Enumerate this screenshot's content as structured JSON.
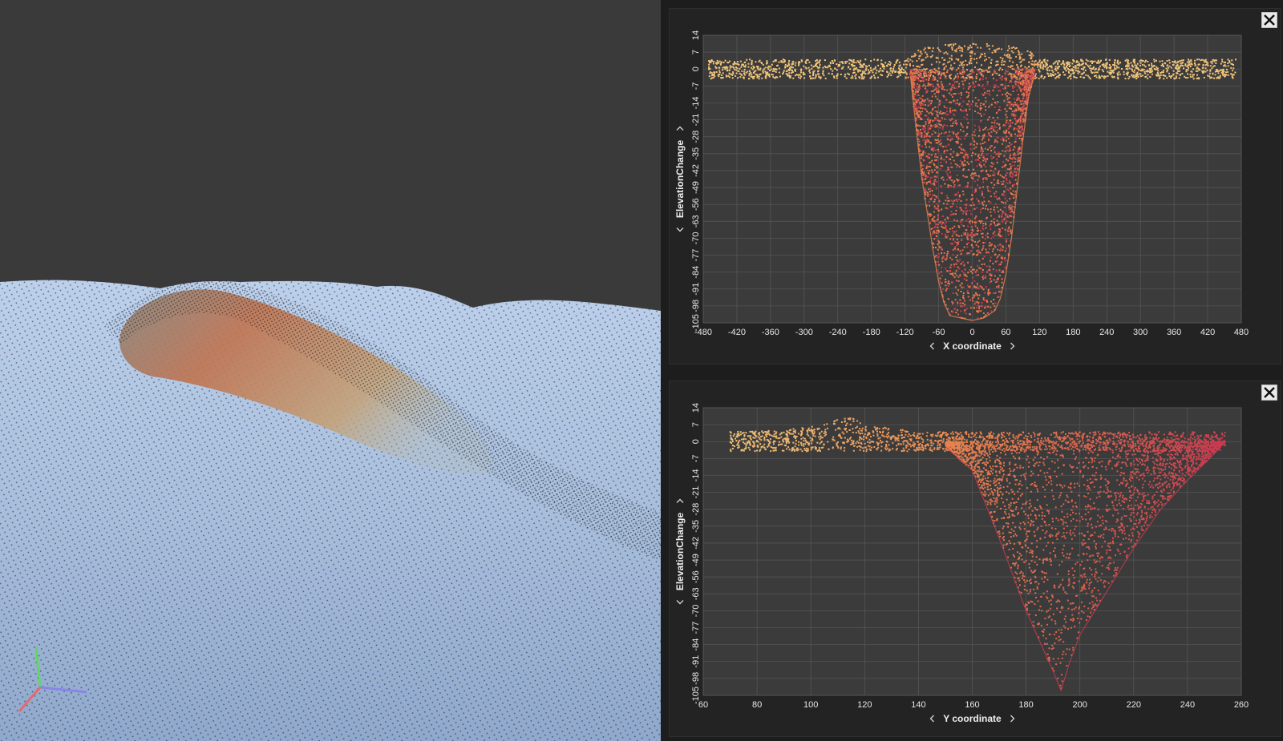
{
  "viewport": {
    "colors": {
      "background": "#3a3a3a",
      "terrain": "#a9bfdc",
      "point_cloud": "#111111"
    }
  },
  "plots": [
    {
      "id": "x",
      "chart_data": {
        "type": "scatter",
        "xlabel": "X coordinate",
        "ylabel": "ElevationChange",
        "xlim": [
          -480,
          480
        ],
        "ylim": [
          -105,
          14
        ],
        "x_ticks": [
          "-480",
          "-420",
          "-360",
          "-300",
          "-240",
          "-180",
          "-120",
          "-60",
          "0",
          "60",
          "120",
          "180",
          "240",
          "300",
          "360",
          "420",
          "480"
        ],
        "y_ticks": [
          "-105",
          "-98",
          "-91",
          "-84",
          "-77",
          "-70",
          "-63",
          "-56",
          "-49",
          "-42",
          "-35",
          "-28",
          "-21",
          "-14",
          "-7",
          "0",
          "7",
          "14"
        ],
        "grid": true,
        "colors": {
          "low": "#c83a50",
          "mid": "#e8844e",
          "high": "#f2cc80"
        },
        "series": [
          {
            "x": [
              -470,
              -420,
              -360,
              -300,
              -240,
              -180,
              -120,
              -100,
              -60,
              0,
              60,
              100,
              120,
              180,
              240,
              300,
              360,
              420,
              470
            ],
            "y": [
              0,
              0,
              0,
              0,
              0,
              0,
              0,
              4,
              6,
              7,
              6,
              4,
              0,
              0,
              0,
              0,
              0,
              0,
              0
            ]
          },
          {
            "x": [
              -110,
              -100,
              -90,
              -80,
              -70,
              -60,
              -50,
              -40,
              -20,
              0,
              20,
              40,
              50,
              60,
              70,
              80,
              90,
              100,
              110
            ],
            "y": [
              -3,
              -25,
              -45,
              -60,
              -75,
              -88,
              -97,
              -102,
              -103,
              -104,
              -103,
              -100,
              -95,
              -85,
              -70,
              -50,
              -30,
              -12,
              -3
            ]
          }
        ]
      }
    },
    {
      "id": "y",
      "chart_data": {
        "type": "scatter",
        "xlabel": "Y coordinate",
        "ylabel": "ElevationChange",
        "xlim": [
          60,
          260
        ],
        "ylim": [
          -105,
          14
        ],
        "x_ticks": [
          "60",
          "80",
          "100",
          "120",
          "140",
          "160",
          "180",
          "200",
          "220",
          "240",
          "260"
        ],
        "y_ticks": [
          "-105",
          "-98",
          "-91",
          "-84",
          "-77",
          "-70",
          "-63",
          "-56",
          "-49",
          "-42",
          "-35",
          "-28",
          "-21",
          "-14",
          "-7",
          "0",
          "7",
          "14"
        ],
        "grid": true,
        "colors": {
          "low": "#c83a50",
          "mid": "#e8844e",
          "high": "#f2cc80"
        },
        "series": [
          {
            "x": [
              70,
              90,
              100,
              110,
              115,
              120,
              140,
              160,
              180,
              200,
              220,
              240,
              254
            ],
            "y": [
              0,
              1,
              2,
              5,
              6,
              3,
              0,
              0,
              0,
              0,
              0,
              0,
              0
            ]
          },
          {
            "x": [
              150,
              160,
              170,
              180,
              190,
              193,
              196,
              200,
              210,
              220,
              230,
              240,
              250,
              254
            ],
            "y": [
              -2,
              -12,
              -40,
              -70,
              -95,
              -103,
              -92,
              -80,
              -62,
              -44,
              -28,
              -16,
              -5,
              0
            ]
          }
        ]
      }
    }
  ]
}
